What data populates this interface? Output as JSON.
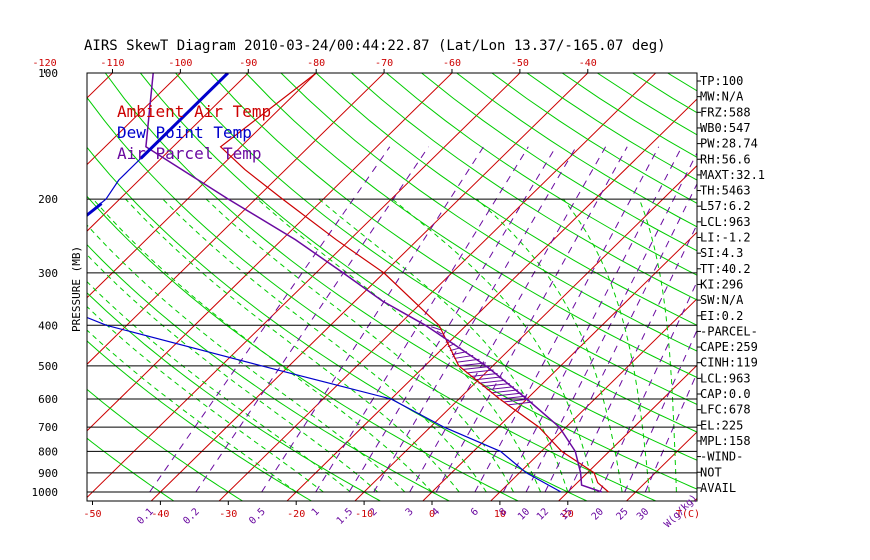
{
  "chart_data": {
    "type": "skewt",
    "title": "AIRS SkewT Diagram 2010-03-24/00:44:22.87 (Lat/Lon 13.37/-165.07 deg)",
    "ylabel": "PRESSURE (MB)",
    "xlabel": "T(C)",
    "mixing_ratio_label": "W(g/kg)",
    "pressure_ticks": [
      100,
      200,
      300,
      400,
      500,
      600,
      700,
      800,
      900,
      1000
    ],
    "pressure_lines": [
      200,
      300,
      400,
      500,
      600,
      700,
      800,
      900,
      1000
    ],
    "top_temp_ticks": [
      -120,
      -110,
      -100,
      -90,
      -80,
      -70,
      -60,
      -50,
      -40
    ],
    "bottom_temp_ticks": [
      -50,
      -40,
      -30,
      -20,
      -10,
      0,
      10,
      20
    ],
    "mixing_ratio_ticks": [
      0.1,
      0.2,
      0.5,
      1,
      1.5,
      2,
      3,
      4,
      6,
      8,
      10,
      12,
      15,
      20,
      25,
      30
    ],
    "legend": [
      {
        "label": "Ambient Air Temp",
        "color": "#cc0000"
      },
      {
        "label": "Dew Point Temp",
        "color": "#0000cc"
      },
      {
        "label": "Air Parcel Temp",
        "color": "#6a0aa0"
      }
    ],
    "series": [
      {
        "name": "Ambient Air Temp",
        "color": "#cc0000",
        "points": [
          [
            100,
            -80
          ],
          [
            150,
            -83
          ],
          [
            170,
            -76
          ],
          [
            200,
            -66
          ],
          [
            250,
            -52
          ],
          [
            300,
            -40
          ],
          [
            400,
            -24
          ],
          [
            500,
            -15
          ],
          [
            600,
            -4
          ],
          [
            700,
            6
          ],
          [
            800,
            13
          ],
          [
            900,
            21
          ],
          [
            950,
            23
          ],
          [
            1000,
            26
          ]
        ]
      },
      {
        "name": "Dew Point Temp",
        "color": "#0000cc",
        "points": [
          [
            100,
            -93
          ],
          [
            180,
            -93
          ],
          [
            200,
            -92
          ],
          [
            240,
            -93
          ],
          [
            300,
            -100
          ],
          [
            400,
            -73
          ],
          [
            500,
            -44
          ],
          [
            600,
            -20
          ],
          [
            700,
            -8
          ],
          [
            800,
            4
          ],
          [
            900,
            11
          ],
          [
            1000,
            19
          ]
        ]
      },
      {
        "name": "Air Parcel Temp",
        "color": "#6a0aa0",
        "points": [
          [
            100,
            -104
          ],
          [
            150,
            -94
          ],
          [
            200,
            -74
          ],
          [
            250,
            -58
          ],
          [
            300,
            -46
          ],
          [
            350,
            -36
          ],
          [
            400,
            -26
          ],
          [
            500,
            -11
          ],
          [
            600,
            0
          ],
          [
            700,
            9
          ],
          [
            800,
            15
          ],
          [
            900,
            19
          ],
          [
            963,
            21
          ],
          [
            1000,
            25
          ]
        ]
      }
    ],
    "indices": [
      "TP:100",
      "MW:N/A",
      "FRZ:588",
      "WB0:547",
      "PW:28.74",
      "RH:56.6",
      "MAXT:32.1",
      "TH:5463",
      "L57:6.2",
      "LCL:963",
      "LI:-1.2",
      "SI:4.3",
      "TT:40.2",
      "KI:296",
      "SW:N/A",
      "EI:0.2",
      "-PARCEL-",
      "CAPE:259",
      "CINH:119",
      "LCL:963",
      "CAP:0.0",
      "LFC:678",
      "EL:225",
      "MPL:158",
      "-WIND-",
      "NOT",
      "AVAIL"
    ],
    "colors": {
      "isotherm": "#cc0000",
      "dry_adiabat": "#00cc00",
      "moist_adiabat": "#00cc00",
      "mixing_ratio": "#6a0aa0",
      "ambient": "#cc0000",
      "dewpoint": "#0000cc",
      "parcel": "#6a0aa0"
    }
  }
}
